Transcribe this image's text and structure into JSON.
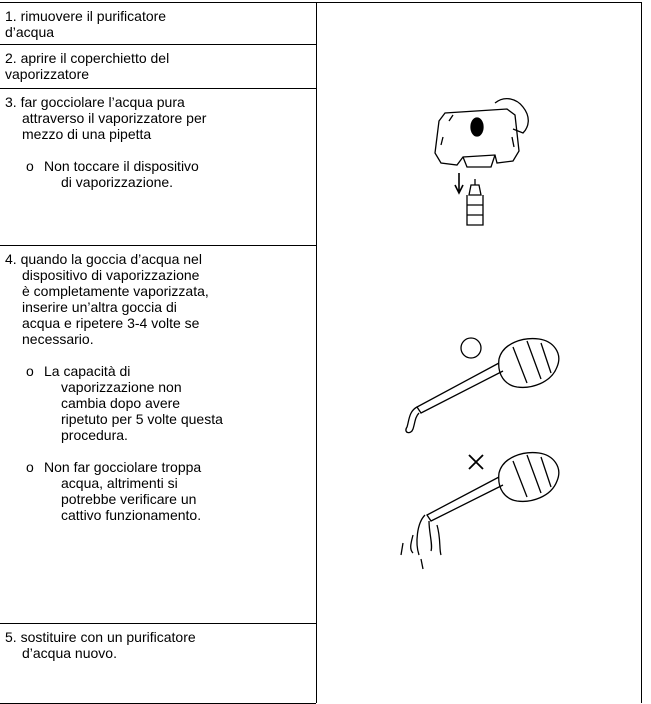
{
  "rows": [
    {
      "lines": [
        "1. rimuovere il purificatore",
        "d’acqua"
      ]
    },
    {
      "lines": [
        "2. aprire il coperchietto del",
        "vaporizzatore"
      ]
    },
    {
      "lines": [
        "3. far gocciolare l’acqua pura",
        "attraverso il vaporizzatore per",
        "mezzo di una pipetta"
      ],
      "notes": [
        {
          "lines": [
            "Non toccare il dispositivo",
            "di vaporizzazione."
          ]
        }
      ]
    },
    {
      "lines": [
        "4. quando la goccia d’acqua nel",
        "dispositivo di vaporizzazione",
        "è completamente vaporizzata,",
        "inserire un’altra goccia di",
        "acqua e ripetere 3-4 volte se",
        "necessario."
      ],
      "notes": [
        {
          "lines": [
            "La capacità di",
            "vaporizzazione non",
            "cambia dopo avere",
            "ripetuto per 5 volte questa",
            "procedura."
          ]
        },
        {
          "lines": [
            "Non far gocciolare troppa",
            "acqua, altrimenti si",
            "potrebbe verificare un",
            "cattivo funzionamento."
          ]
        }
      ]
    },
    {
      "lines": [
        "5. sostituire con un purificatore",
        "d’acqua nuovo."
      ]
    }
  ]
}
